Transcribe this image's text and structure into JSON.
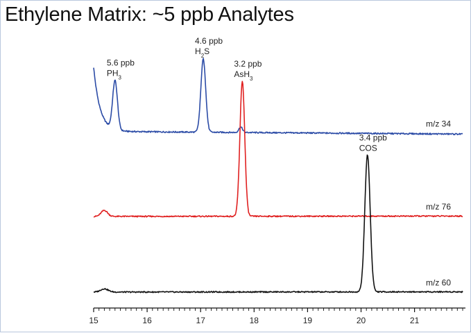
{
  "chart_data": {
    "type": "line",
    "title": "Ethylene Matrix:  ~5 ppb Analytes",
    "xlabel": "",
    "ylabel": "",
    "xlim": [
      15,
      21.9
    ],
    "xticks": [
      15,
      16,
      17,
      18,
      19,
      20,
      21
    ],
    "grid": false,
    "legend": "none",
    "series": [
      {
        "name": "m/z 34",
        "color": "#2b4ba6",
        "baseline": 0.62,
        "drift": -0.18,
        "start_rise": 4.2,
        "peaks": [
          {
            "x": 15.4,
            "height": 3.2,
            "width": 0.045
          },
          {
            "x": 17.05,
            "height": 4.8,
            "width": 0.045
          },
          {
            "x": 17.75,
            "height": 0.35,
            "width": 0.035
          }
        ]
      },
      {
        "name": "m/z 76",
        "color": "#e02020",
        "baseline": 0.0,
        "drift": 0.03,
        "start_rise": 0.0,
        "peaks": [
          {
            "x": 15.2,
            "height": 0.45,
            "width": 0.06
          },
          {
            "x": 17.78,
            "height": 10.0,
            "width": 0.045
          }
        ]
      },
      {
        "name": "m/z 60",
        "color": "#111111",
        "baseline": 0.0,
        "drift": 0.02,
        "start_rise": 0.0,
        "peaks": [
          {
            "x": 15.2,
            "height": 0.25,
            "width": 0.07
          },
          {
            "x": 20.12,
            "height": 10.4,
            "width": 0.05
          }
        ]
      }
    ],
    "annotations": [
      {
        "series": "m/z 34",
        "x": 15.4,
        "amount": "5.6 ppb",
        "compound": "PH",
        "subscript": "3"
      },
      {
        "series": "m/z 34",
        "x": 17.05,
        "amount": "4.6 ppb",
        "compound": "H",
        "subscript": "2",
        "suffix": "S"
      },
      {
        "series": "m/z 76",
        "x": 17.78,
        "amount": "3.2 ppb",
        "compound": "AsH",
        "subscript": "3"
      },
      {
        "series": "m/z 60",
        "x": 20.12,
        "amount": "3.4 ppb",
        "compound": "COS"
      }
    ]
  }
}
